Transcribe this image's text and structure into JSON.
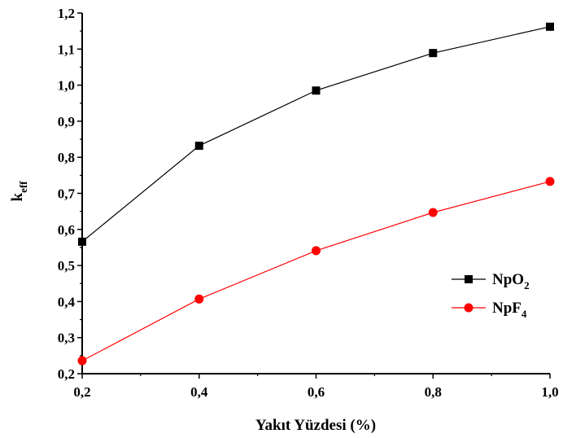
{
  "chart_data": {
    "type": "line",
    "xlabel": "Yakıt Yüzdesi (%)",
    "ylabel": {
      "main": "k",
      "sub": "eff"
    },
    "xlim": [
      0.2,
      1.0
    ],
    "ylim": [
      0.2,
      1.2
    ],
    "x_ticks": [
      "0,2",
      "0,4",
      "0,6",
      "0,8",
      "1,0"
    ],
    "y_ticks": [
      "0,2",
      "0,3",
      "0,4",
      "0,5",
      "0,6",
      "0,7",
      "0,8",
      "0,9",
      "1,0",
      "1,1",
      "1,2"
    ],
    "x": [
      0.2,
      0.4,
      0.6,
      0.8,
      1.0
    ],
    "series": [
      {
        "name": "NpO2",
        "name_main": "NpO",
        "name_sub": "2",
        "marker": "square",
        "color": "#000000",
        "values": [
          0.566,
          0.832,
          0.985,
          1.089,
          1.162
        ]
      },
      {
        "name": "NpF4",
        "name_main": "NpF",
        "name_sub": "4",
        "marker": "circle",
        "color": "#ff0000",
        "values": [
          0.236,
          0.407,
          0.541,
          0.647,
          0.733
        ]
      }
    ],
    "grid": false,
    "legend_position": "right"
  }
}
